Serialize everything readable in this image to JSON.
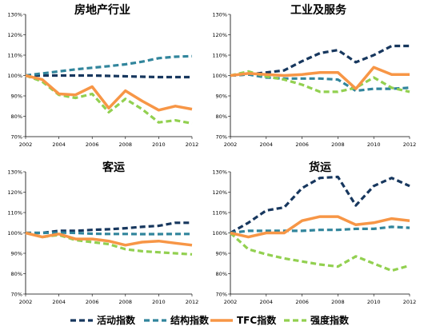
{
  "chart_data": [
    {
      "type": "line",
      "title": "房地产行业",
      "x": [
        2002,
        2003,
        2004,
        2005,
        2006,
        2007,
        2008,
        2009,
        2010,
        2011,
        2012
      ],
      "xticks": [
        "2002",
        "2004",
        "2006",
        "2008",
        "2010",
        "2012"
      ],
      "ylim": [
        70,
        130
      ],
      "yticks": [
        "70%",
        "80%",
        "90%",
        "100%",
        "110%",
        "120%",
        "130%"
      ],
      "series": [
        {
          "name": "活动指数",
          "values": [
            100,
            100,
            100,
            100,
            100,
            99.8,
            99.6,
            99.4,
            99.2,
            99.2,
            99.2
          ]
        },
        {
          "name": "结构指数",
          "values": [
            100,
            101,
            102,
            103,
            103.8,
            104.6,
            105.5,
            106.8,
            108.5,
            109.2,
            109.5
          ]
        },
        {
          "name": "TFC指数",
          "values": [
            100,
            98,
            91,
            90.5,
            94.5,
            84,
            92.5,
            87.5,
            83,
            85,
            83.5
          ]
        },
        {
          "name": "强度指数",
          "values": [
            100,
            97,
            90.5,
            89,
            91,
            82,
            88.5,
            83.5,
            77,
            78,
            76.5
          ]
        }
      ]
    },
    {
      "type": "line",
      "title": "工业及服务",
      "x": [
        2002,
        2003,
        2004,
        2005,
        2006,
        2007,
        2008,
        2009,
        2010,
        2011,
        2012
      ],
      "xticks": [
        "2002",
        "2004",
        "2006",
        "2008",
        "2010",
        "2012"
      ],
      "ylim": [
        70,
        130
      ],
      "yticks": [
        "70%",
        "80%",
        "90%",
        "100%",
        "110%",
        "120%",
        "130%"
      ],
      "series": [
        {
          "name": "活动指数",
          "values": [
            100,
            100.5,
            101.5,
            102.5,
            107,
            111,
            112.5,
            106.5,
            110,
            114.5,
            114.5
          ]
        },
        {
          "name": "结构指数",
          "values": [
            100,
            100.5,
            99,
            98.5,
            98.5,
            98.5,
            98,
            92.5,
            93.5,
            93.5,
            94
          ]
        },
        {
          "name": "TFC指数",
          "values": [
            100,
            101,
            100.5,
            100,
            100.5,
            101.5,
            101.5,
            93.5,
            104,
            100.5,
            100.5
          ]
        },
        {
          "name": "强度指数",
          "values": [
            100,
            102,
            99.5,
            98,
            95.5,
            92,
            92,
            94,
            99,
            94,
            92
          ]
        }
      ]
    },
    {
      "type": "line",
      "title": "客运",
      "x": [
        2002,
        2003,
        2004,
        2005,
        2006,
        2007,
        2008,
        2009,
        2010,
        2011,
        2012
      ],
      "xticks": [
        "2002",
        "2004",
        "2006",
        "2008",
        "2010",
        "2012"
      ],
      "ylim": [
        70,
        130
      ],
      "yticks": [
        "70%",
        "80%",
        "90%",
        "100%",
        "110%",
        "120%",
        "130%"
      ],
      "series": [
        {
          "name": "活动指数",
          "values": [
            100,
            100,
            101,
            101,
            101.5,
            101.8,
            102.3,
            103,
            103.5,
            105,
            105
          ]
        },
        {
          "name": "结构指数",
          "values": [
            100,
            100,
            100.2,
            100,
            99.6,
            99.5,
            99.5,
            99.4,
            99.4,
            99.5,
            99.5
          ]
        },
        {
          "name": "TFC指数",
          "values": [
            100,
            98,
            99.5,
            97,
            97,
            96,
            94,
            95.5,
            96,
            95,
            94
          ]
        },
        {
          "name": "强度指数",
          "values": [
            100,
            98,
            99,
            96.5,
            95.5,
            94.5,
            92,
            91,
            90.5,
            90,
            89.5
          ]
        }
      ]
    },
    {
      "type": "line",
      "title": "货运",
      "x": [
        2002,
        2003,
        2004,
        2005,
        2006,
        2007,
        2008,
        2009,
        2010,
        2011,
        2012
      ],
      "xticks": [
        "2002",
        "2004",
        "2006",
        "2008",
        "2010",
        "2012"
      ],
      "ylim": [
        70,
        130
      ],
      "yticks": [
        "70%",
        "80%",
        "90%",
        "100%",
        "110%",
        "120%",
        "130%"
      ],
      "series": [
        {
          "name": "活动指数",
          "values": [
            100,
            105,
            111,
            112.5,
            122,
            127,
            127.5,
            113.5,
            123,
            127,
            123
          ]
        },
        {
          "name": "结构指数",
          "values": [
            100,
            101,
            101,
            101,
            101,
            101.5,
            101.5,
            102,
            102,
            103,
            102.5
          ]
        },
        {
          "name": "TFC指数",
          "values": [
            100,
            98,
            100,
            100,
            106,
            108,
            108,
            104,
            105,
            107,
            106
          ]
        },
        {
          "name": "强度指数",
          "values": [
            100,
            92,
            89.5,
            87.5,
            86,
            84.5,
            83.5,
            88.5,
            85,
            81.5,
            84
          ]
        }
      ]
    }
  ],
  "legend": [
    {
      "label": "活动指数",
      "color": "#17375e",
      "dash": "dash"
    },
    {
      "label": "结构指数",
      "color": "#31859c",
      "dash": "dash"
    },
    {
      "label": "TFC指数",
      "color": "#f79646",
      "dash": "solid"
    },
    {
      "label": "强度指数",
      "color": "#92d050",
      "dash": "dash"
    }
  ]
}
